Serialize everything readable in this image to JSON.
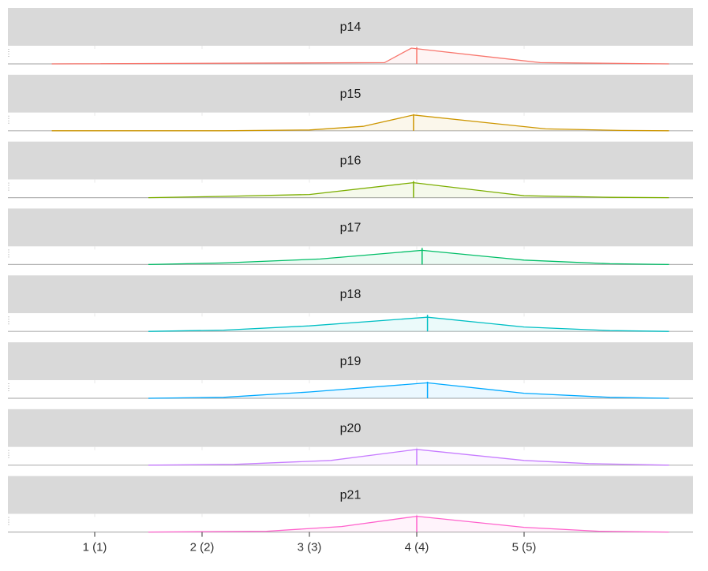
{
  "chart_data": {
    "type": "area",
    "x_ticks": [
      {
        "value": 1,
        "label": "1 (1)"
      },
      {
        "value": 2,
        "label": "2 (2)"
      },
      {
        "value": 3,
        "label": "3 (3)"
      },
      {
        "value": 4,
        "label": "4 (4)"
      },
      {
        "value": 5,
        "label": "5 (5)"
      }
    ],
    "xlim": [
      0.3,
      6.4
    ],
    "grid": true,
    "strip_background": "#d9d9d9",
    "panels": [
      {
        "label": "p14",
        "color": "#F8766D",
        "mean": 4.0,
        "points": [
          [
            0.6,
            0.0
          ],
          [
            3.7,
            0.08
          ],
          [
            3.95,
            1.0
          ],
          [
            5.15,
            0.08
          ],
          [
            6.35,
            0.0
          ]
        ]
      },
      {
        "label": "p15",
        "color": "#CD9600",
        "mean": 3.97,
        "points": [
          [
            0.6,
            0.0
          ],
          [
            2.2,
            0.0
          ],
          [
            3.0,
            0.05
          ],
          [
            3.5,
            0.28
          ],
          [
            3.97,
            1.0
          ],
          [
            5.2,
            0.12
          ],
          [
            5.9,
            0.02
          ],
          [
            6.35,
            0.0
          ]
        ]
      },
      {
        "label": "p16",
        "color": "#7CAE00",
        "mean": 3.97,
        "points": [
          [
            1.5,
            0.0
          ],
          [
            2.2,
            0.08
          ],
          [
            3.0,
            0.2
          ],
          [
            3.97,
            0.95
          ],
          [
            5.0,
            0.12
          ],
          [
            5.8,
            0.02
          ],
          [
            6.35,
            0.0
          ]
        ]
      },
      {
        "label": "p17",
        "color": "#00BE67",
        "mean": 4.05,
        "points": [
          [
            1.5,
            0.0
          ],
          [
            2.2,
            0.1
          ],
          [
            3.1,
            0.35
          ],
          [
            4.05,
            0.9
          ],
          [
            5.0,
            0.28
          ],
          [
            5.8,
            0.05
          ],
          [
            6.35,
            0.0
          ]
        ]
      },
      {
        "label": "p18",
        "color": "#00BFC4",
        "mean": 4.1,
        "points": [
          [
            1.5,
            0.0
          ],
          [
            2.2,
            0.08
          ],
          [
            3.0,
            0.35
          ],
          [
            4.1,
            0.9
          ],
          [
            5.0,
            0.28
          ],
          [
            5.8,
            0.05
          ],
          [
            6.35,
            0.0
          ]
        ]
      },
      {
        "label": "p19",
        "color": "#00A9FF",
        "mean": 4.1,
        "points": [
          [
            1.5,
            0.0
          ],
          [
            2.2,
            0.06
          ],
          [
            3.0,
            0.4
          ],
          [
            4.1,
            0.98
          ],
          [
            5.0,
            0.32
          ],
          [
            5.8,
            0.06
          ],
          [
            6.35,
            0.0
          ]
        ]
      },
      {
        "label": "p20",
        "color": "#C77CFF",
        "mean": 4.0,
        "points": [
          [
            1.5,
            0.0
          ],
          [
            2.3,
            0.05
          ],
          [
            3.2,
            0.3
          ],
          [
            4.0,
            1.0
          ],
          [
            5.0,
            0.3
          ],
          [
            5.6,
            0.1
          ],
          [
            6.35,
            0.0
          ]
        ]
      },
      {
        "label": "p21",
        "color": "#FF61CC",
        "mean": 4.0,
        "points": [
          [
            1.5,
            0.0
          ],
          [
            2.6,
            0.05
          ],
          [
            3.3,
            0.35
          ],
          [
            4.0,
            1.0
          ],
          [
            5.0,
            0.3
          ],
          [
            5.7,
            0.05
          ],
          [
            6.35,
            0.0
          ]
        ]
      }
    ]
  }
}
